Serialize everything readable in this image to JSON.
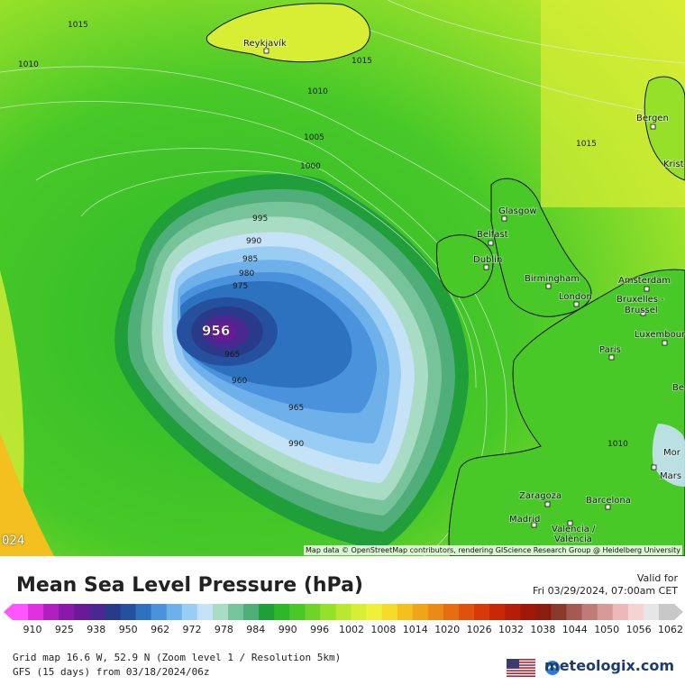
{
  "map": {
    "attribution": "Map data © OpenStreetMap contributors, rendering GIScience Research Group @ Heidelberg University",
    "timecode": "024",
    "low_center_label": "956",
    "isobar_labels": [
      "1015",
      "1010",
      "1015",
      "1010",
      "1005",
      "1000",
      "995",
      "990",
      "985",
      "980",
      "975",
      "965",
      "960",
      "965",
      "990",
      "1015",
      "1010"
    ],
    "cities": [
      "Reykjavík",
      "Bergen",
      "Kristiansand",
      "Glasgow",
      "Belfast",
      "Dublin",
      "Birmingham",
      "London",
      "Amsterdam",
      "Bruxelles - Brussel",
      "Paris",
      "Luxembourg",
      "Marseille",
      "Zaragoza",
      "Barcelona",
      "Madrid",
      "València / Valencia"
    ],
    "city_text": {
      "reykjavik": "Reykjavík",
      "bergen": "Bergen",
      "krist": "Krist",
      "glasgow": "Glasgow",
      "belfast": "Belfast",
      "dublin": "Dublin",
      "birmingham": "Birmingham",
      "london": "London",
      "amsterdam": "Amsterdam",
      "bruxelles": "Bruxelles -",
      "brussel": "Brussel",
      "paris": "Paris",
      "luxembourg": "Luxembourg",
      "marseille": "Mars",
      "zaragoza": "Zaragoza",
      "barcelona": "Barcelona",
      "madrid": "Madrid",
      "valencia1": "Valencia /",
      "valencia2": "València",
      "mor": "Mor",
      "be": "Be"
    }
  },
  "legend": {
    "title": "Mean Sea Level Pressure (hPa)",
    "valid_label": "Valid for",
    "valid_time": "Fri 03/29/2024, 07:00am CET",
    "ticks": [
      "910",
      "925",
      "938",
      "950",
      "962",
      "972",
      "978",
      "984",
      "990",
      "996",
      "1002",
      "1008",
      "1014",
      "1020",
      "1026",
      "1032",
      "1038",
      "1044",
      "1050",
      "1056",
      "1062"
    ],
    "colors": [
      "#ff55ff",
      "#e030e0",
      "#b020c0",
      "#8a18a8",
      "#6a1a98",
      "#4a2890",
      "#2a3a8a",
      "#24509e",
      "#2c72be",
      "#4a92dc",
      "#6eb0ea",
      "#9acdf4",
      "#c6e2f6",
      "#a9dcc4",
      "#78c49a",
      "#4fae7a",
      "#1f9e3a",
      "#2db82a",
      "#48c928",
      "#6fd428",
      "#96e02a",
      "#b8e830",
      "#d8ee34",
      "#eef03a",
      "#f5dc2c",
      "#f3c020",
      "#efa41a",
      "#eb8a14",
      "#e66e10",
      "#e0520c",
      "#d63a0a",
      "#c82808",
      "#b41e08",
      "#a01808",
      "#8a1c10",
      "#8a3a2a",
      "#a45a50",
      "#c07a78",
      "#d89a98",
      "#ecb8b8",
      "#f6d2d2",
      "#e6e6e6",
      "#c8c8c8"
    ]
  },
  "footer": {
    "grid_info": "Grid map 16.6 W, 52.9 N (Zoom level 1 / Resolution 5km)",
    "model_info": "GFS (15 days) from  03/18/2024/06z",
    "brand": "meteologix.com"
  }
}
